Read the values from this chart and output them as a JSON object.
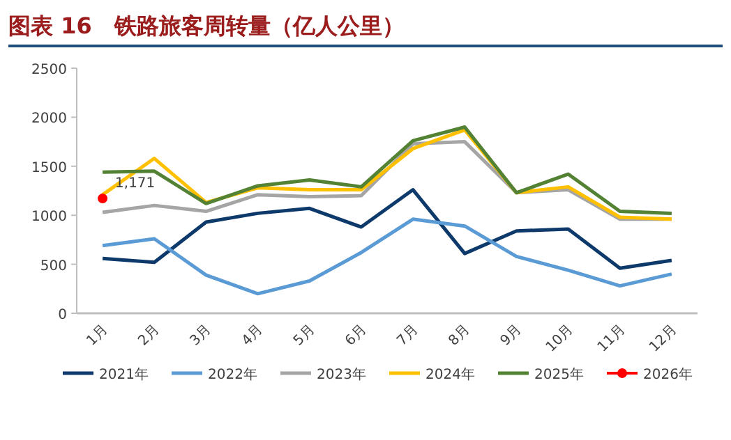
{
  "chart_data": {
    "type": "line",
    "title": "图表 16　铁路旅客周转量（亿人公里）",
    "categories": [
      "1月",
      "2月",
      "3月",
      "4月",
      "5月",
      "6月",
      "7月",
      "8月",
      "9月",
      "10月",
      "11月",
      "12月"
    ],
    "ylim": [
      0,
      2500
    ],
    "yticks": [
      0,
      500,
      1000,
      1500,
      2000,
      2500
    ],
    "legend": "bottom",
    "grid": false,
    "series": [
      {
        "name": "2021年",
        "color": "#0e3a6b",
        "values": [
          560,
          520,
          930,
          1020,
          1070,
          880,
          1260,
          610,
          840,
          860,
          460,
          540
        ]
      },
      {
        "name": "2022年",
        "color": "#5b9bd5",
        "values": [
          690,
          760,
          390,
          200,
          330,
          620,
          960,
          890,
          580,
          440,
          280,
          400
        ]
      },
      {
        "name": "2023年",
        "color": "#a5a5a5",
        "values": [
          1030,
          1100,
          1040,
          1210,
          1190,
          1200,
          1730,
          1750,
          1230,
          1260,
          960,
          960
        ]
      },
      {
        "name": "2024年",
        "color": "#ffc000",
        "values": [
          1210,
          1580,
          1130,
          1280,
          1260,
          1260,
          1680,
          1870,
          1230,
          1290,
          980,
          960
        ]
      },
      {
        "name": "2025年",
        "color": "#548235",
        "values": [
          1440,
          1450,
          1120,
          1300,
          1360,
          1290,
          1760,
          1900,
          1230,
          1420,
          1040,
          1020
        ]
      },
      {
        "name": "2026年",
        "color": "#ff0000",
        "type": "scatter",
        "values": [
          1171,
          null,
          null,
          null,
          null,
          null,
          null,
          null,
          null,
          null,
          null,
          null
        ],
        "value_labels": [
          "1,171",
          null,
          null,
          null,
          null,
          null,
          null,
          null,
          null,
          null,
          null,
          null
        ]
      }
    ]
  }
}
